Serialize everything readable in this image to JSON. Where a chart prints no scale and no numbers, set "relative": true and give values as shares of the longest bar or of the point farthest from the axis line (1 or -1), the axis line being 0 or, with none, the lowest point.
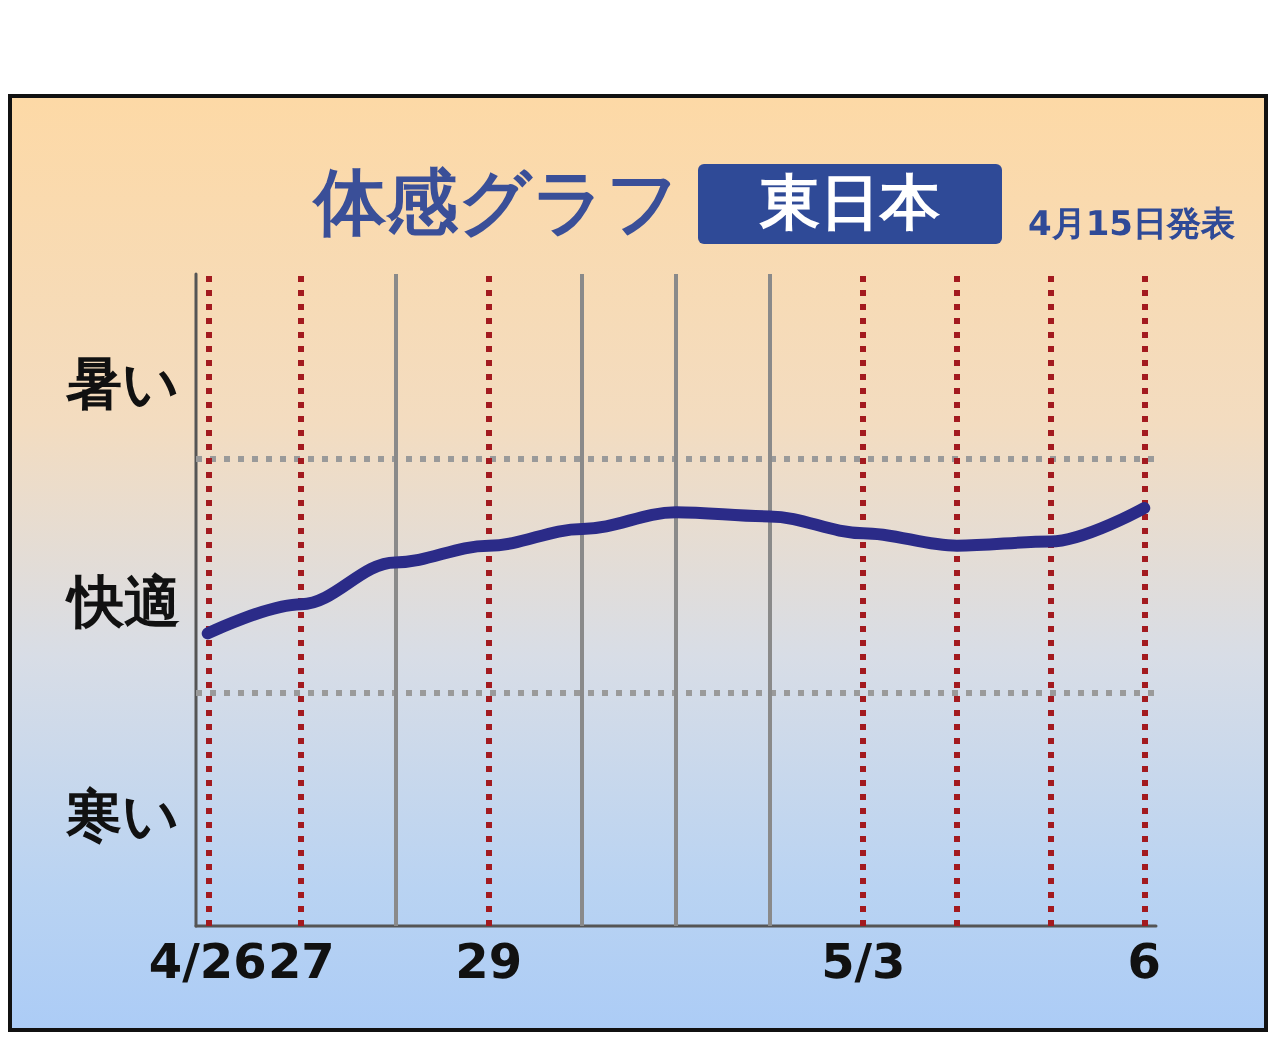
{
  "chart_data": {
    "type": "line",
    "title": "体感グラフ",
    "subtitle": "東日本",
    "annotations": [
      "4月15日発表",
      "暑い",
      "快適",
      "寒い"
    ],
    "x": [
      "--04-26",
      "--04-27",
      "--04-28",
      "--04-29",
      "--04-30",
      "--05-01",
      "--05-02",
      "--05-03",
      "--05-04",
      "--05-05",
      "--05-06"
    ],
    "xlim": [
      "--04-25T21:00",
      "--05-06T03:00"
    ],
    "xticks": [
      {
        "value": "--04-26",
        "label": "4/26"
      },
      {
        "value": "--04-27",
        "label": "27"
      },
      {
        "value": "--04-29",
        "label": "29"
      },
      {
        "value": "--05-03",
        "label": "5/3"
      },
      {
        "value": "--05-06",
        "label": "6"
      }
    ],
    "relative": true,
    "series": [
      {
        "color": "#2b2b88",
        "values": [
          0.7,
          0.77,
          0.87,
          0.91,
          0.95,
          0.99,
          0.98,
          0.94,
          0.91,
          0.92,
          1
        ]
      }
    ],
    "marker": "none",
    "ref_lines": [
      {
        "axis": "y",
        "value": 0.56,
        "color": "#9a9a9a",
        "line_style": "dotted"
      },
      {
        "axis": "y",
        "value": 1.12,
        "color": "#9a9a9a",
        "line_style": "dotted"
      },
      {
        "axis": "x",
        "value": "--04-26",
        "color": "#a31a1f",
        "line_style": "dotted"
      },
      {
        "axis": "x",
        "value": "--04-27",
        "color": "#a31a1f",
        "line_style": "dotted"
      },
      {
        "axis": "x",
        "value": "--04-28",
        "color": "#8a8a8a",
        "line_style": "solid"
      },
      {
        "axis": "x",
        "value": "--04-29",
        "color": "#a31a1f",
        "line_style": "dotted"
      },
      {
        "axis": "x",
        "value": "--04-30",
        "color": "#8a8a8a",
        "line_style": "solid"
      },
      {
        "axis": "x",
        "value": "--05-01",
        "color": "#8a8a8a",
        "line_style": "solid"
      },
      {
        "axis": "x",
        "value": "--05-02",
        "color": "#8a8a8a",
        "line_style": "solid"
      },
      {
        "axis": "x",
        "value": "--05-03",
        "color": "#a31a1f",
        "line_style": "dotted"
      },
      {
        "axis": "x",
        "value": "--05-04",
        "color": "#a31a1f",
        "line_style": "dotted"
      },
      {
        "axis": "x",
        "value": "--05-05",
        "color": "#a31a1f",
        "line_style": "dotted"
      },
      {
        "axis": "x",
        "value": "--05-06",
        "color": "#a31a1f",
        "line_style": "dotted"
      }
    ]
  }
}
